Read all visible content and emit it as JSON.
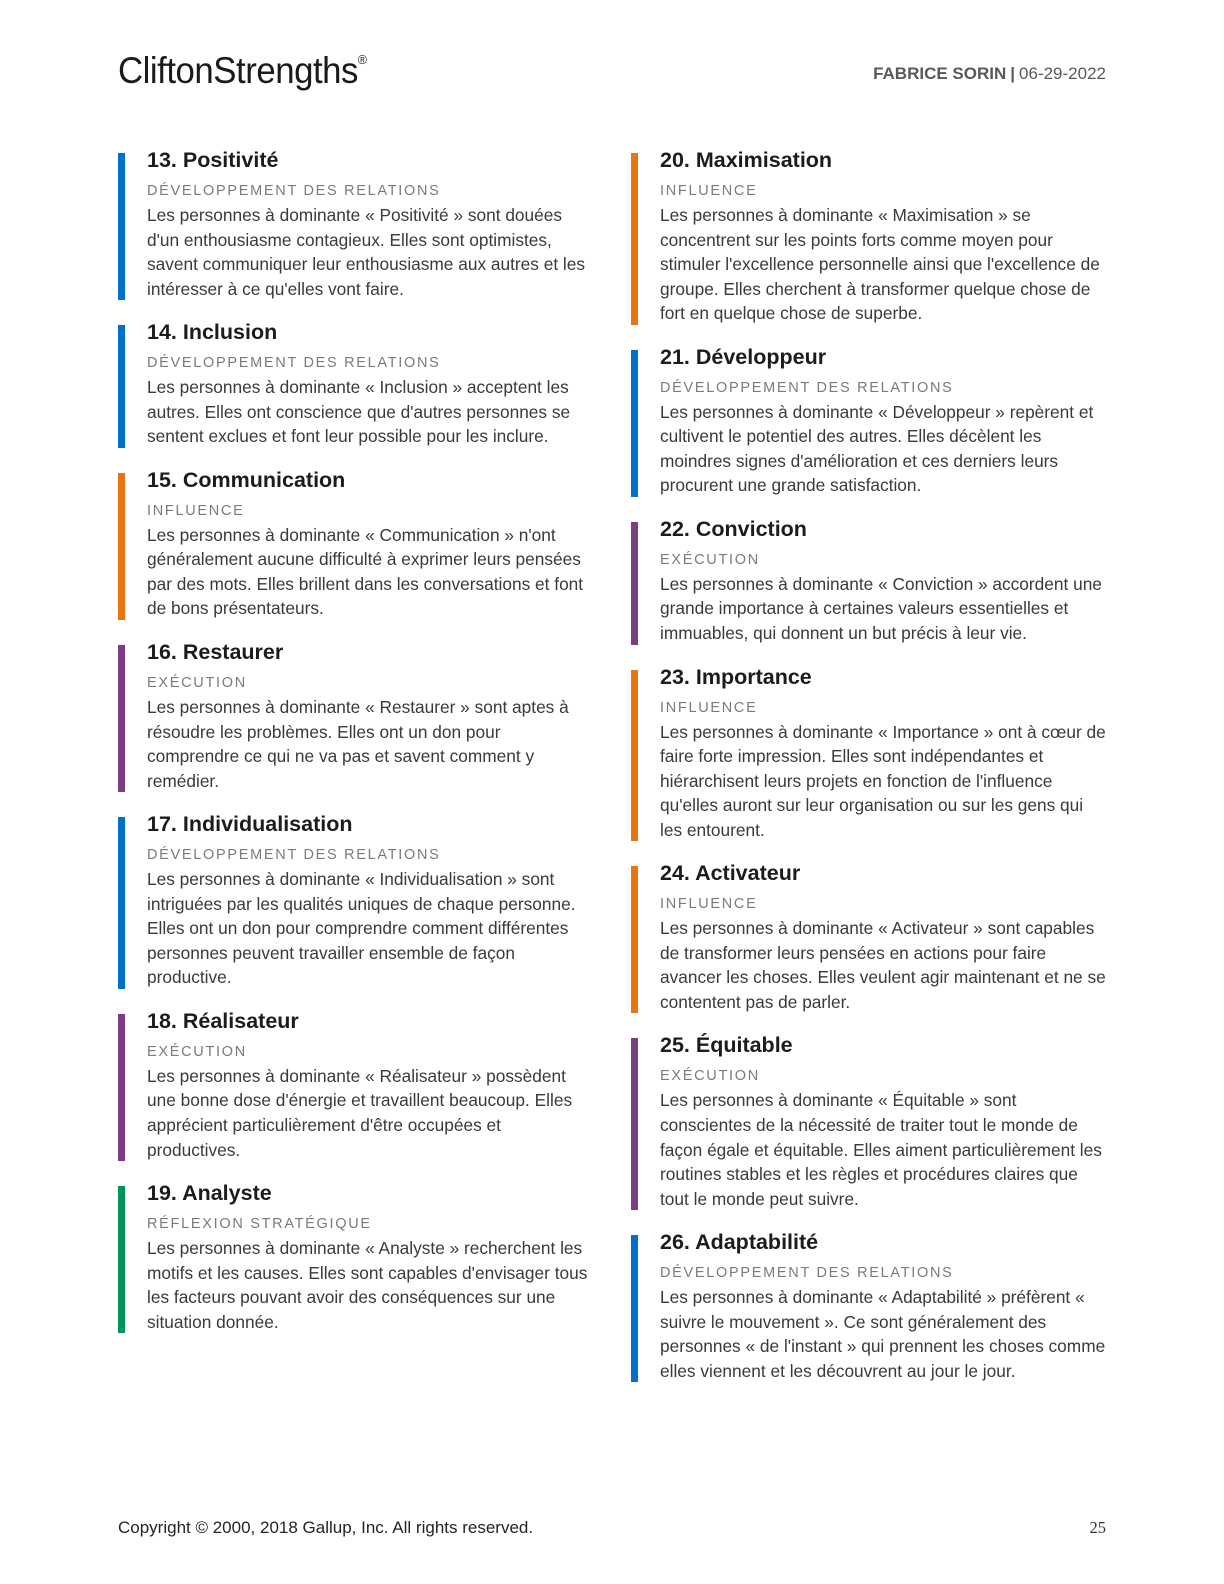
{
  "header": {
    "logo": "CliftonStrengths",
    "registered_mark": "®",
    "user_name": "FABRICE SORIN",
    "separator": "|",
    "date": "06-29-2022"
  },
  "domain_colors": {
    "relationship_building_blue": "#0070cd",
    "influencing_orange": "#e87511",
    "executing_purple": "#7b3e82",
    "strategic_thinking_green": "#00945d"
  },
  "columns": {
    "left": [
      {
        "title": "13. Positivité",
        "category": "DÉVELOPPEMENT DES RELATIONS",
        "color": "#0070cd",
        "description": "Les personnes à dominante « Positivité » sont douées d'un enthousiasme contagieux. Elles sont optimistes, savent communiquer leur enthousiasme aux autres et les intéresser à ce qu'elles vont faire."
      },
      {
        "title": "14. Inclusion",
        "category": "DÉVELOPPEMENT DES RELATIONS",
        "color": "#0070cd",
        "description": "Les personnes à dominante « Inclusion » acceptent les autres. Elles ont conscience que d'autres personnes se sentent exclues et font leur possible pour les inclure."
      },
      {
        "title": "15. Communication",
        "category": "INFLUENCE",
        "color": "#e87511",
        "description": "Les personnes à dominante « Communication » n'ont généralement aucune difficulté à exprimer leurs pensées par des mots. Elles brillent dans les conversations et font de bons présentateurs."
      },
      {
        "title": "16. Restaurer",
        "category": "EXÉCUTION",
        "color": "#7b3e82",
        "description": "Les personnes à dominante « Restaurer » sont aptes à résoudre les problèmes. Elles ont un don pour comprendre ce qui ne va pas et savent comment y remédier."
      },
      {
        "title": "17. Individualisation",
        "category": "DÉVELOPPEMENT DES RELATIONS",
        "color": "#0070cd",
        "description": "Les personnes à dominante « Individualisation » sont intriguées par les qualités uniques de chaque personne. Elles ont un don pour comprendre comment différentes personnes peuvent travailler ensemble de façon productive."
      },
      {
        "title": "18. Réalisateur",
        "category": "EXÉCUTION",
        "color": "#7b3e82",
        "description": "Les personnes à dominante « Réalisateur » possèdent une bonne dose d'énergie et travaillent beaucoup. Elles apprécient particulièrement d'être occupées et productives."
      },
      {
        "title": "19. Analyste",
        "category": "RÉFLEXION STRATÉGIQUE",
        "color": "#00945d",
        "description": "Les personnes à dominante « Analyste » recherchent les motifs et les causes. Elles sont capables d'envisager tous les facteurs pouvant avoir des conséquences sur une situation donnée."
      }
    ],
    "right": [
      {
        "title": "20. Maximisation",
        "category": "INFLUENCE",
        "color": "#e87511",
        "description": "Les personnes à dominante « Maximisation » se concentrent sur les points forts comme moyen pour stimuler l'excellence personnelle ainsi que l'excellence de groupe. Elles cherchent à transformer quelque chose de fort en quelque chose de superbe."
      },
      {
        "title": "21. Développeur",
        "category": "DÉVELOPPEMENT DES RELATIONS",
        "color": "#0070cd",
        "description": "Les personnes à dominante « Développeur » repèrent et cultivent le potentiel des autres. Elles décèlent les moindres signes d'amélioration et ces derniers leurs procurent une grande satisfaction."
      },
      {
        "title": "22. Conviction",
        "category": "EXÉCUTION",
        "color": "#7b3e82",
        "description": "Les personnes à dominante « Conviction » accordent une grande importance à certaines valeurs essentielles et immuables, qui donnent un but précis à leur vie."
      },
      {
        "title": "23. Importance",
        "category": "INFLUENCE",
        "color": "#e87511",
        "description": "Les personnes à dominante « Importance » ont à cœur de faire forte impression. Elles sont indépendantes et hiérarchisent leurs projets en fonction de l'influence qu'elles auront sur leur organisation ou sur les gens qui les entourent."
      },
      {
        "title": "24. Activateur",
        "category": "INFLUENCE",
        "color": "#e87511",
        "description": "Les personnes à dominante « Activateur » sont capables de transformer leurs pensées en actions pour faire avancer les choses. Elles veulent agir maintenant et ne se contentent pas de parler."
      },
      {
        "title": "25. Équitable",
        "category": "EXÉCUTION",
        "color": "#7b3e82",
        "description": "Les personnes à dominante « Équitable » sont conscientes de la nécessité de traiter tout le monde de façon égale et équitable. Elles aiment particulièrement les routines stables et les règles et procédures claires que tout le monde peut suivre."
      },
      {
        "title": "26. Adaptabilité",
        "category": "DÉVELOPPEMENT DES RELATIONS",
        "color": "#0070cd",
        "description": "Les personnes à dominante « Adaptabilité » préfèrent « suivre le mouvement ». Ce sont généralement des personnes « de l'instant » qui prennent les choses comme elles viennent et les découvrent au jour le jour."
      }
    ]
  },
  "footer": {
    "copyright": "Copyright © 2000, 2018 Gallup, Inc. All rights reserved.",
    "page_number": "25"
  }
}
